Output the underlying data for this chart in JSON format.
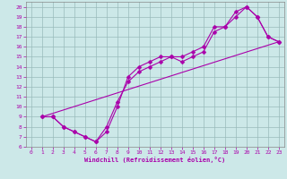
{
  "xlabel": "Windchill (Refroidissement éolien,°C)",
  "xlim": [
    -0.5,
    23.5
  ],
  "ylim": [
    6,
    20.5
  ],
  "xticks": [
    0,
    1,
    2,
    3,
    4,
    5,
    6,
    7,
    8,
    9,
    10,
    11,
    12,
    13,
    14,
    15,
    16,
    17,
    18,
    19,
    20,
    21,
    22,
    23
  ],
  "yticks": [
    6,
    7,
    8,
    9,
    10,
    11,
    12,
    13,
    14,
    15,
    16,
    17,
    18,
    19,
    20
  ],
  "bg_color": "#cce8e8",
  "line_color": "#aa00aa",
  "grid_color": "#99bbbb",
  "line1_x": [
    1,
    2,
    3,
    4,
    5,
    6,
    7,
    8,
    9,
    10,
    11,
    12,
    13,
    14,
    15,
    16,
    17,
    18,
    19,
    20,
    21,
    22,
    23
  ],
  "line1_y": [
    9.0,
    9.0,
    8.0,
    7.5,
    7.0,
    6.5,
    8.0,
    10.5,
    12.5,
    13.5,
    14.0,
    14.5,
    15.0,
    14.5,
    15.0,
    15.5,
    17.5,
    18.0,
    19.5,
    20.0,
    19.0,
    17.0,
    16.5
  ],
  "line2_x": [
    1,
    2,
    3,
    4,
    5,
    6,
    7,
    8,
    9,
    10,
    11,
    12,
    13,
    14,
    15,
    16,
    17,
    18,
    19,
    20,
    21,
    22,
    23
  ],
  "line2_y": [
    9.0,
    9.0,
    8.0,
    7.5,
    7.0,
    6.5,
    7.5,
    10.0,
    13.0,
    14.0,
    14.5,
    15.0,
    15.0,
    15.0,
    15.5,
    16.0,
    18.0,
    18.0,
    19.0,
    20.0,
    19.0,
    17.0,
    16.5
  ],
  "line3_x": [
    1,
    23
  ],
  "line3_y": [
    9.0,
    16.5
  ],
  "marker_size": 2.5,
  "line_width": 0.8
}
